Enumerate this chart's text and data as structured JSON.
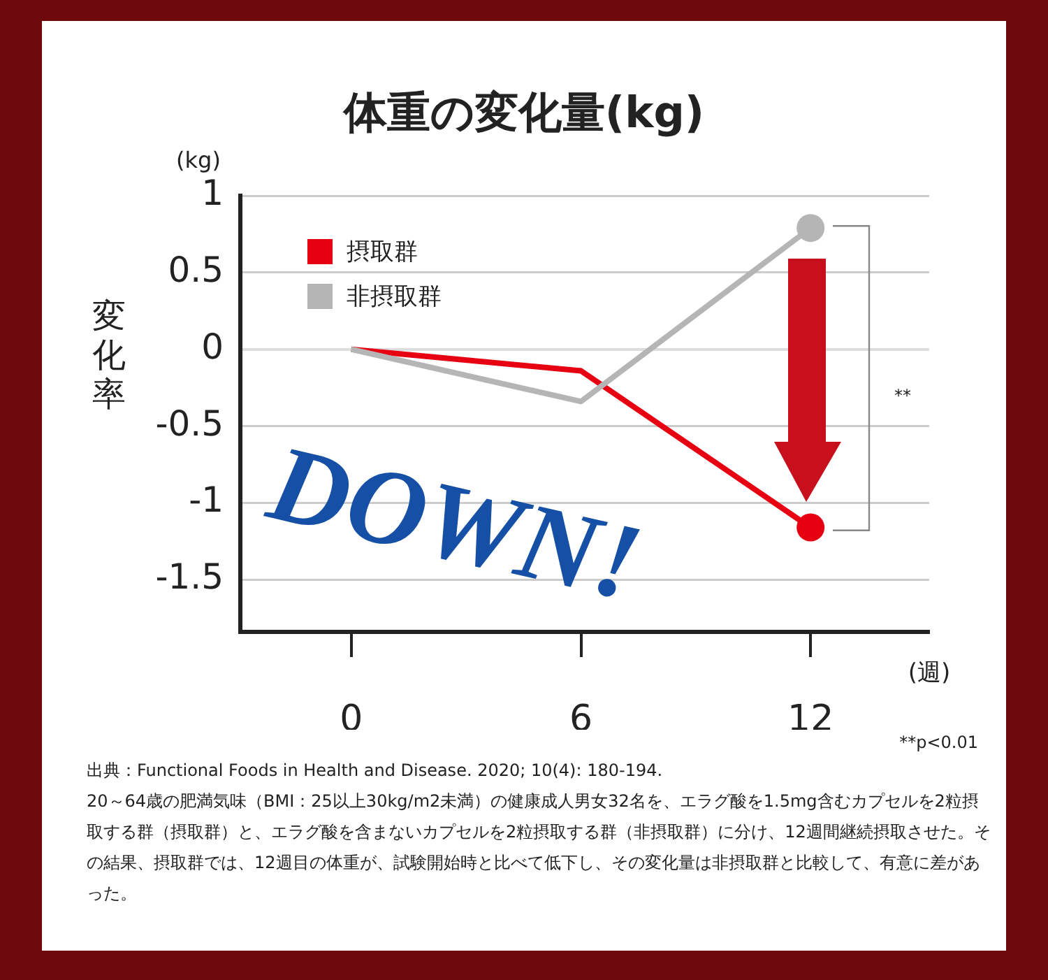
{
  "chart_data": {
    "type": "line",
    "title": "体重の変化量(kg)",
    "xlabel": "(週)",
    "ylabel": "変化率",
    "x": [
      0,
      6,
      12
    ],
    "xlim": [
      -2.9,
      15.1
    ],
    "xticks": [
      0,
      6,
      12
    ],
    "ylim": [
      -1.84,
      1
    ],
    "yticks": [
      1,
      0.5,
      0,
      -0.5,
      -1,
      -1.5
    ],
    "grid": "y",
    "legend": "top left",
    "series": [
      {
        "name": "摂取群",
        "color": "#e60012",
        "values": [
          0,
          -0.14,
          -1.16
        ]
      },
      {
        "name": "非摂取群",
        "color": "#b5b5b5",
        "values": [
          0,
          -0.34,
          0.79
        ]
      },
      {
        "type": "scatter",
        "color": "#b5b5b5",
        "x": [
          12
        ],
        "values": [
          0.79
        ]
      },
      {
        "type": "scatter",
        "color": "#e60012",
        "x": [
          12
        ],
        "values": [
          -1.16
        ]
      }
    ],
    "annotations": [
      "(kg)",
      "DOWN!",
      "**",
      "**p<0.01",
      "出典：Functional Foods in Health and Disease. 2020; 10(4): 180-194.",
      "20～64歳の肥満気味（BMI：25以上30kg/m2未満）の健康成人男女32名を、エラグ酸を1.5mg含むカプセルを2粒摂取する群（摂取群）と、エラグ酸を含まないカプセルを2粒摂取する群（非摂取群）に分け、12週間継続摂取させた。その結果、摂取群では、12週目の体重が、試験開始時と比べて低下し、その変化量は非摂取群と比較して、有意に差があった。"
    ]
  }
}
